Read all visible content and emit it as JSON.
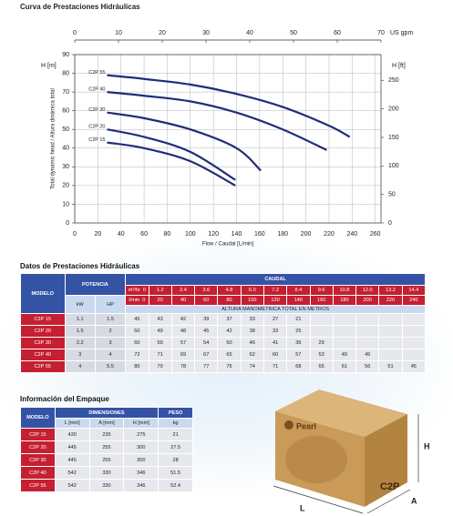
{
  "chart_data": {
    "type": "line",
    "title": "Curva de Prestaciones Hidráulicas",
    "xlabel": "Flow / Caudal [L/min]",
    "ylabel": "Total dynamic head / Altura dinámica total",
    "y_unit": "H [m]",
    "y2_unit": "H [ft]",
    "x2_unit": "US gpm",
    "xlim": [
      0,
      265
    ],
    "xticks": [
      0,
      20,
      40,
      60,
      80,
      100,
      120,
      140,
      160,
      180,
      200,
      220,
      240,
      260
    ],
    "x2lim": [
      0,
      70
    ],
    "x2ticks": [
      0,
      10,
      20,
      30,
      40,
      50,
      60,
      70
    ],
    "ylim": [
      0,
      90
    ],
    "yticks": [
      0,
      10,
      20,
      30,
      40,
      50,
      60,
      70,
      80,
      90
    ],
    "y2lim": [
      0,
      295
    ],
    "y2ticks": [
      0,
      50,
      100,
      150,
      200,
      250
    ],
    "grid": true,
    "series": [
      {
        "name": "C2P 55",
        "color": "#1f2d7a",
        "x": [
          28,
          60,
          100,
          140,
          180,
          220,
          238
        ],
        "values": [
          79,
          77,
          74,
          69,
          62,
          52,
          46
        ]
      },
      {
        "name": "C2P 40",
        "color": "#1f2d7a",
        "x": [
          28,
          60,
          100,
          140,
          180,
          218
        ],
        "values": [
          70,
          68,
          65,
          59,
          50,
          39
        ]
      },
      {
        "name": "C2P 30",
        "color": "#1f2d7a",
        "x": [
          28,
          60,
          100,
          140,
          161
        ],
        "values": [
          59,
          56,
          50,
          40,
          28
        ]
      },
      {
        "name": "C2P 20",
        "color": "#1f2d7a",
        "x": [
          28,
          60,
          100,
          139
        ],
        "values": [
          50,
          46,
          38,
          23
        ]
      },
      {
        "name": "C2P 15",
        "color": "#1f2d7a",
        "x": [
          28,
          60,
          100,
          139
        ],
        "values": [
          43,
          40,
          33,
          20
        ]
      }
    ]
  },
  "performance_table": {
    "title": "Datos de Prestaciones Hidráulicas",
    "headers": {
      "model": "MODELO",
      "power": "POTENCIA",
      "kw": "kW",
      "hp": "HP",
      "flow": "CAUDAL",
      "m3h_unit": "m³/hr",
      "lmin_unit": "l/min",
      "head": "ALTURA MANOMETRICA TOTAL EN METROS"
    },
    "m3h": [
      "0",
      "1.2",
      "2.4",
      "3.6",
      "4.8",
      "6.0",
      "7.2",
      "8.4",
      "9.6",
      "10.8",
      "12.0",
      "13.2",
      "14.4"
    ],
    "lmin": [
      "0",
      "20",
      "40",
      "60",
      "80",
      "100",
      "120",
      "140",
      "160",
      "180",
      "200",
      "220",
      "240"
    ],
    "rows": [
      {
        "model": "C2P 15",
        "kw": "1.1",
        "hp": "1.5",
        "heads": [
          "45",
          "43",
          "42",
          "39",
          "37",
          "33",
          "27",
          "21"
        ]
      },
      {
        "model": "C2P 20",
        "kw": "1.5",
        "hp": "2",
        "heads": [
          "50",
          "49",
          "48",
          "45",
          "42",
          "38",
          "33",
          "25"
        ]
      },
      {
        "model": "C2P 30",
        "kw": "2.2",
        "hp": "3",
        "heads": [
          "60",
          "59",
          "57",
          "54",
          "50",
          "46",
          "41",
          "36",
          "29"
        ]
      },
      {
        "model": "C2P 40",
        "kw": "3",
        "hp": "4",
        "heads": [
          "72",
          "71",
          "69",
          "67",
          "65",
          "62",
          "60",
          "57",
          "53",
          "49",
          "45"
        ]
      },
      {
        "model": "C2P 55",
        "kw": "4",
        "hp": "5.5",
        "heads": [
          "80",
          "79",
          "78",
          "77",
          "75",
          "74",
          "71",
          "68",
          "65",
          "61",
          "56",
          "51",
          "45"
        ]
      }
    ]
  },
  "package_table": {
    "title": "Información del Empaque",
    "headers": {
      "model": "MODELO",
      "dimensions": "DIMENSIONES",
      "weight": "PESO",
      "l": "L [mm]",
      "a": "A [mm]",
      "h": "H [mm]",
      "kg": "kg"
    },
    "rows": [
      {
        "model": "C2P 15",
        "l": "430",
        "a": "235",
        "h": "275",
        "kg": "21"
      },
      {
        "model": "C2P 20",
        "l": "445",
        "a": "255",
        "h": "300",
        "kg": "27.5"
      },
      {
        "model": "C2P 30",
        "l": "445",
        "a": "255",
        "h": "300",
        "kg": "28"
      },
      {
        "model": "C2P 40",
        "l": "542",
        "a": "330",
        "h": "346",
        "kg": "51.5"
      },
      {
        "model": "C2P 55",
        "l": "542",
        "a": "330",
        "h": "346",
        "kg": "52.4"
      }
    ]
  },
  "package_image": {
    "brand": "Pearl",
    "model": "C2P",
    "labels": {
      "h": "H",
      "l": "L",
      "a": "A"
    }
  }
}
